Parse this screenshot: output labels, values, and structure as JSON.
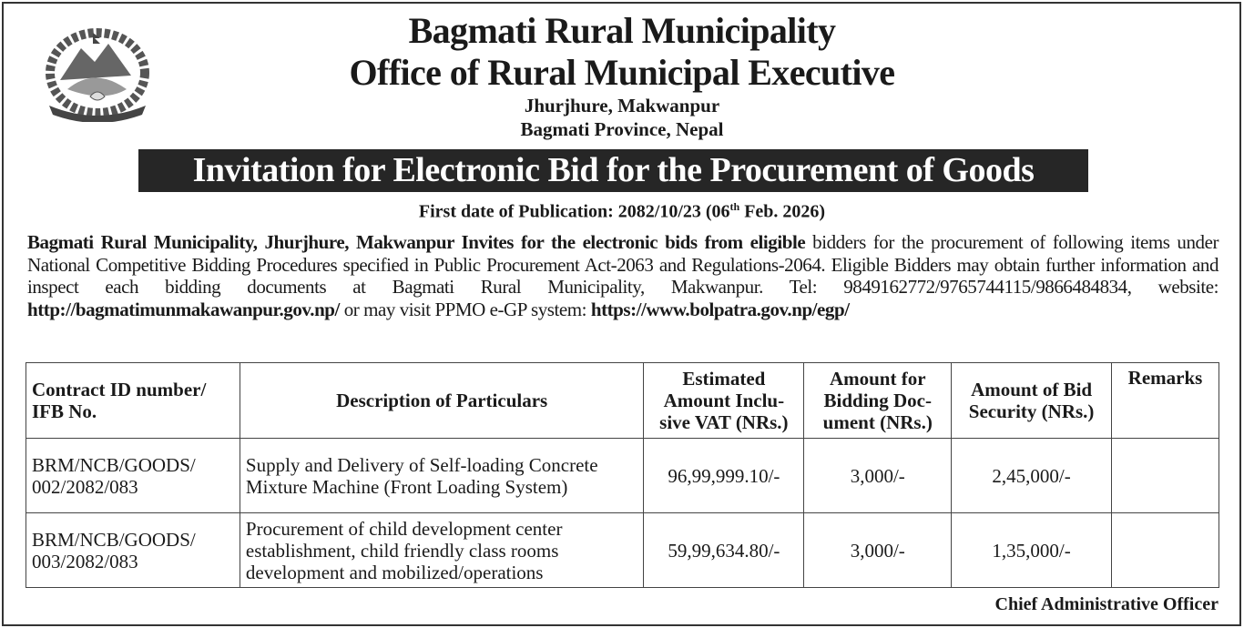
{
  "header": {
    "org_name": "Bagmati Rural Municipality",
    "office": "Office of Rural Municipal Executive",
    "address_line1": "Jhurjhure, Makwanpur",
    "address_line2": "Bagmati Province, Nepal",
    "emblem": "nepal-government-emblem"
  },
  "notice_title": "Invitation for Electronic Bid for the Procurement of Goods",
  "publication": {
    "label": "First date of Publication: 2082/10/23 (06",
    "sup": "th",
    "rest": " Feb. 2026)"
  },
  "paragraph": {
    "bold_intro": "Bagmati Rural Municipality, Jhurjhure, Makwanpur Invites for the electronic bids from eligible",
    "text1": " bidders for the procurement of following items under National Competitive Bidding Procedures specified in Public Procurement Act-2063 and Regulations-2064. Eligible Bidders may obtain further information and inspect each bidding documents at Bagmati Rural Municipality, Makwanpur. Tel: 9849162772/9765744115/9866484834, website: ",
    "website": "http://bagmatimunmakawanpur.gov.np/",
    "text2": " or may visit PPMO e-GP system: ",
    "egp_url": "https://www.bolpatra.gov.np/egp/"
  },
  "table": {
    "headers": [
      "Contract ID number/ IFB No.",
      "Description of Particulars",
      "Estimated Amount Inclu-sive VAT (NRs.)",
      "Amount for Bidding Doc-ument (NRs.)",
      "Amount of Bid Security (NRs.)",
      "Remarks"
    ],
    "rows": [
      {
        "contract_id": "BRM/NCB/GOODS/ 002/2082/083",
        "description": "Supply and Delivery of Self-loading Concrete Mixture Machine (Front Loading System)",
        "estimated_amount": "96,99,999.10/-",
        "bidding_doc_amount": "3,000/-",
        "bid_security": "2,45,000/-",
        "remarks": ""
      },
      {
        "contract_id": "BRM/NCB/GOODS/ 003/2082/083",
        "description": "Procurement of child development center establishment, child friendly class rooms development and mobilized/operations",
        "estimated_amount": "59,99,634.80/-",
        "bidding_doc_amount": "3,000/-",
        "bid_security": "1,35,000/-",
        "remarks": ""
      }
    ]
  },
  "signatory": "Chief Administrative Officer"
}
